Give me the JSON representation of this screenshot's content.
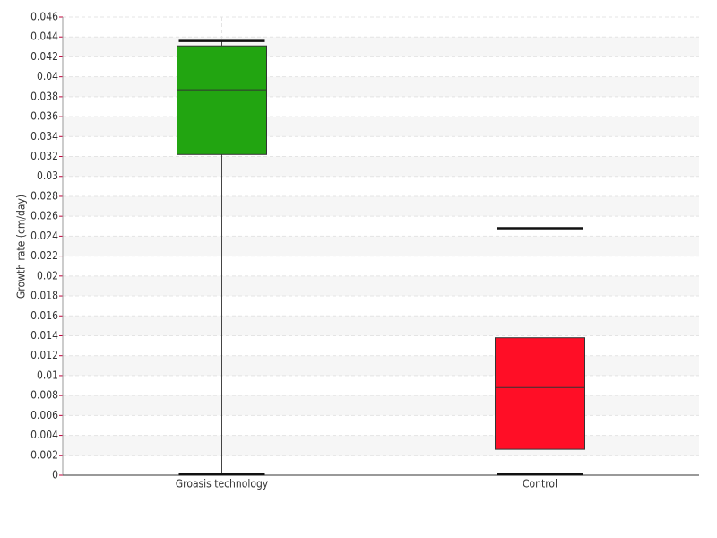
{
  "chart_data": {
    "type": "box",
    "y_label": "Growth rate (cm/day)",
    "categories": [
      "Groasis technology",
      "Control"
    ],
    "boxes": [
      {
        "min": 0,
        "q1": 0.0322,
        "median": 0.0387,
        "q3": 0.0431,
        "max": 0.0436,
        "color": "#22a511"
      },
      {
        "min": 0,
        "q1": 0.0026,
        "median": 0.0088,
        "q3": 0.0138,
        "max": 0.0248,
        "color": "#ff0e26"
      }
    ],
    "ylim": [
      0,
      0.046
    ],
    "yticks": [
      0,
      0.002,
      0.004,
      0.006,
      0.008,
      0.01,
      0.012,
      0.014,
      0.016,
      0.018,
      0.02,
      0.022,
      0.024,
      0.026,
      0.028,
      0.03,
      0.032,
      0.034,
      0.036,
      0.038,
      0.04,
      0.042,
      0.044,
      0.046
    ],
    "grid": true
  }
}
